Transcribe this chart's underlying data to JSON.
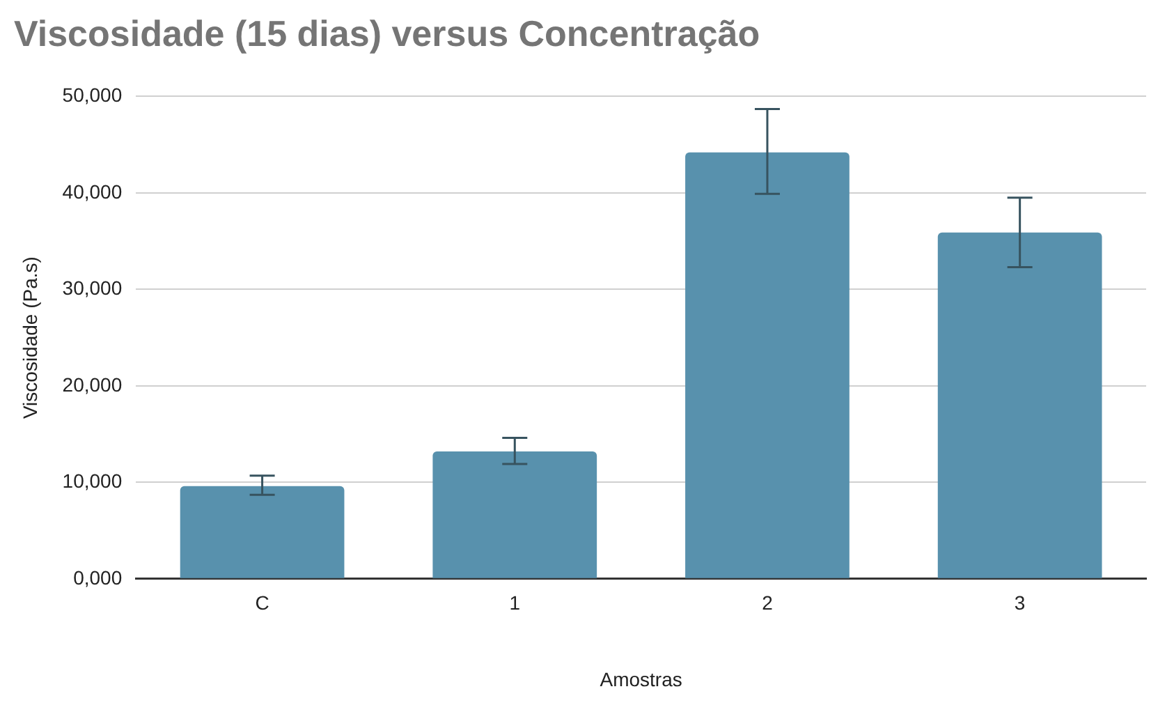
{
  "chart_data": {
    "type": "bar",
    "title": "Viscosidade (15 dias) versus Concentração",
    "xlabel": "Amostras",
    "ylabel": "Viscosidade (Pa.s)",
    "categories": [
      "C",
      "1",
      "2",
      "3"
    ],
    "values": [
      9600,
      13200,
      44200,
      35900
    ],
    "errors": [
      [
        8700,
        10700
      ],
      [
        11900,
        14600
      ],
      [
        39900,
        48700
      ],
      [
        32300,
        39500
      ]
    ],
    "color": "#5891ad",
    "ylim": [
      0,
      50000
    ],
    "yticks": [
      {
        "value": 0,
        "label": "0,000"
      },
      {
        "value": 10000,
        "label": "10,000"
      },
      {
        "value": 20000,
        "label": "20,000"
      },
      {
        "value": 30000,
        "label": "30,000"
      },
      {
        "value": 40000,
        "label": "40,000"
      },
      {
        "value": 50000,
        "label": "50,000"
      }
    ],
    "grid": "y",
    "legend": false
  }
}
